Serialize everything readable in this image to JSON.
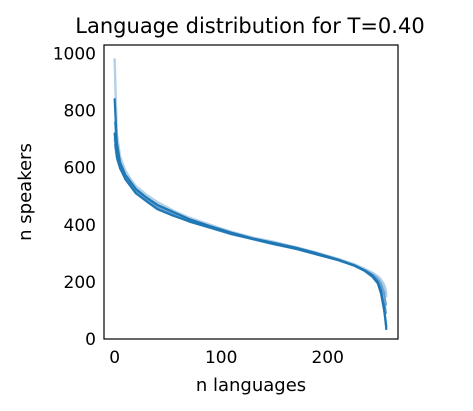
{
  "chart_data": {
    "type": "line",
    "title": "Language distribution for T=0.40",
    "xlabel": "n languages",
    "ylabel": "n speakers",
    "xlim": [
      -10,
      266
    ],
    "ylim": [
      0,
      1030
    ],
    "xticks": [
      0,
      100,
      200
    ],
    "yticks": [
      0,
      200,
      400,
      600,
      800,
      1000
    ],
    "grid": false,
    "legend": "none",
    "colors": {
      "main": "#1f77b4",
      "light": "#a6c8e3",
      "mid": "#5b9bd0"
    },
    "series": [
      {
        "style": "light",
        "x": [
          0,
          2,
          5,
          10,
          15,
          20,
          30,
          40,
          55,
          70,
          90,
          110,
          130,
          150,
          170,
          190,
          210,
          225,
          235,
          242,
          247,
          250,
          253,
          255
        ],
        "y": [
          980,
          720,
          640,
          590,
          560,
          535,
          505,
          480,
          450,
          425,
          400,
          375,
          355,
          340,
          320,
          300,
          280,
          260,
          240,
          225,
          215,
          200,
          180,
          150
        ]
      },
      {
        "style": "light",
        "x": [
          0,
          2,
          5,
          10,
          15,
          20,
          30,
          40,
          55,
          70,
          90,
          110,
          130,
          150,
          170,
          190,
          210,
          225,
          235,
          242,
          247,
          250,
          253,
          255
        ],
        "y": [
          700,
          650,
          610,
          580,
          555,
          525,
          495,
          470,
          440,
          420,
          395,
          370,
          352,
          338,
          322,
          302,
          280,
          262,
          245,
          232,
          220,
          208,
          190,
          160
        ]
      },
      {
        "style": "mid",
        "x": [
          0,
          2,
          5,
          10,
          15,
          20,
          30,
          40,
          55,
          70,
          90,
          110,
          130,
          150,
          170,
          190,
          210,
          225,
          235,
          242,
          247,
          250,
          253,
          255
        ],
        "y": [
          760,
          660,
          600,
          570,
          545,
          520,
          490,
          465,
          440,
          415,
          392,
          368,
          350,
          333,
          318,
          298,
          278,
          260,
          242,
          228,
          212,
          195,
          165,
          120
        ]
      },
      {
        "style": "mid",
        "x": [
          0,
          2,
          5,
          10,
          15,
          20,
          30,
          40,
          55,
          70,
          90,
          110,
          130,
          150,
          170,
          190,
          210,
          225,
          235,
          242,
          247,
          250,
          253,
          255
        ],
        "y": [
          680,
          630,
          595,
          565,
          540,
          515,
          485,
          460,
          435,
          410,
          388,
          365,
          348,
          330,
          315,
          295,
          275,
          255,
          238,
          222,
          205,
          185,
          150,
          90
        ]
      },
      {
        "style": "main",
        "x": [
          0,
          2,
          5,
          10,
          15,
          20,
          30,
          40,
          55,
          70,
          90,
          110,
          130,
          150,
          170,
          190,
          210,
          225,
          235,
          242,
          247,
          250,
          253,
          255
        ],
        "y": [
          840,
          690,
          620,
          575,
          550,
          525,
          495,
          470,
          445,
          420,
          395,
          372,
          352,
          336,
          320,
          300,
          278,
          258,
          240,
          222,
          200,
          170,
          110,
          35
        ]
      },
      {
        "style": "main",
        "x": [
          0,
          2,
          5,
          10,
          15,
          20,
          30,
          40,
          55,
          70,
          90,
          110,
          130,
          150,
          170,
          190,
          210,
          225,
          235,
          242,
          247,
          250,
          253,
          255
        ],
        "y": [
          720,
          640,
          600,
          560,
          535,
          510,
          482,
          455,
          432,
          412,
          390,
          368,
          350,
          332,
          316,
          296,
          276,
          257,
          238,
          218,
          195,
          160,
          100,
          45
        ]
      }
    ]
  }
}
